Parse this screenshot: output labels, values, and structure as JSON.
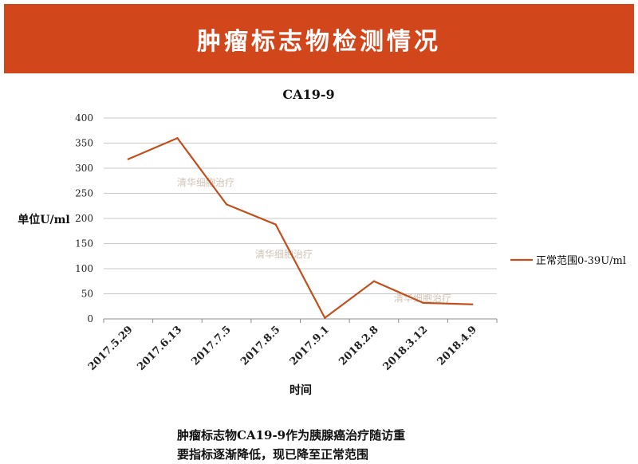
{
  "banner": {
    "title": "肿瘤标志物检测情况"
  },
  "caption": {
    "line1": "肿瘤标志物CA19-9作为胰腺癌治疗随访重",
    "line2": "要指标逐渐降低，现已降至正常范围"
  },
  "watermark": "清华细胞治疗",
  "colors": {
    "banner": "#d2461c",
    "series": "#c0501e",
    "grid": "#c8c8c8"
  },
  "chart_data": {
    "type": "line",
    "title": "CA19-9",
    "xlabel": "时间",
    "ylabel": "单位U/ml",
    "categories": [
      "2017.5.29",
      "2017.6.13",
      "2017.7.5",
      "2017.8.5",
      "2017.9.1",
      "2018.2.8",
      "2018.3.12",
      "2018.4.9"
    ],
    "series": [
      {
        "name": "正常范围0-39U/ml",
        "values": [
          318,
          360,
          228,
          188,
          2,
          75,
          32,
          29
        ]
      }
    ],
    "ylim": [
      0,
      400
    ],
    "yticks": [
      0,
      50,
      100,
      150,
      200,
      250,
      300,
      350,
      400
    ],
    "grid": true,
    "legend": "right"
  }
}
